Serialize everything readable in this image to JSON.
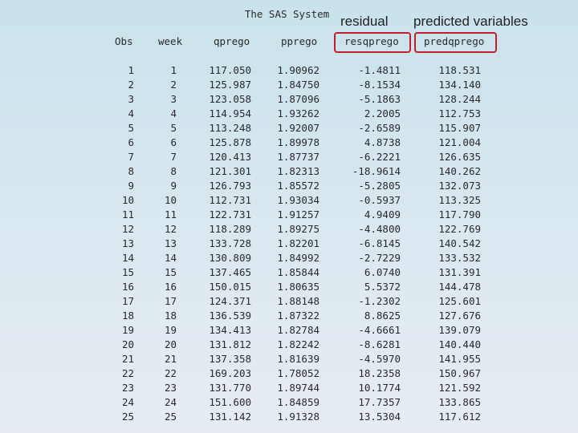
{
  "title": "The SAS System",
  "annotations": {
    "residual": "residual",
    "predicted": "predicted variables"
  },
  "columns": {
    "obs": "Obs",
    "week": "week",
    "qprego": "qprego",
    "pprego": "pprego",
    "resqprego": "resqprego",
    "predqprego": "predqprego"
  },
  "rows": [
    {
      "obs": "1",
      "week": "1",
      "qprego": "117.050",
      "pprego": "1.90962",
      "resqprego": "-1.4811",
      "predqprego": "118.531"
    },
    {
      "obs": "2",
      "week": "2",
      "qprego": "125.987",
      "pprego": "1.84750",
      "resqprego": "-8.1534",
      "predqprego": "134.140"
    },
    {
      "obs": "3",
      "week": "3",
      "qprego": "123.058",
      "pprego": "1.87096",
      "resqprego": "-5.1863",
      "predqprego": "128.244"
    },
    {
      "obs": "4",
      "week": "4",
      "qprego": "114.954",
      "pprego": "1.93262",
      "resqprego": "2.2005",
      "predqprego": "112.753"
    },
    {
      "obs": "5",
      "week": "5",
      "qprego": "113.248",
      "pprego": "1.92007",
      "resqprego": "-2.6589",
      "predqprego": "115.907"
    },
    {
      "obs": "6",
      "week": "6",
      "qprego": "125.878",
      "pprego": "1.89978",
      "resqprego": "4.8738",
      "predqprego": "121.004"
    },
    {
      "obs": "7",
      "week": "7",
      "qprego": "120.413",
      "pprego": "1.87737",
      "resqprego": "-6.2221",
      "predqprego": "126.635"
    },
    {
      "obs": "8",
      "week": "8",
      "qprego": "121.301",
      "pprego": "1.82313",
      "resqprego": "-18.9614",
      "predqprego": "140.262"
    },
    {
      "obs": "9",
      "week": "9",
      "qprego": "126.793",
      "pprego": "1.85572",
      "resqprego": "-5.2805",
      "predqprego": "132.073"
    },
    {
      "obs": "10",
      "week": "10",
      "qprego": "112.731",
      "pprego": "1.93034",
      "resqprego": "-0.5937",
      "predqprego": "113.325"
    },
    {
      "obs": "11",
      "week": "11",
      "qprego": "122.731",
      "pprego": "1.91257",
      "resqprego": "4.9409",
      "predqprego": "117.790"
    },
    {
      "obs": "12",
      "week": "12",
      "qprego": "118.289",
      "pprego": "1.89275",
      "resqprego": "-4.4800",
      "predqprego": "122.769"
    },
    {
      "obs": "13",
      "week": "13",
      "qprego": "133.728",
      "pprego": "1.82201",
      "resqprego": "-6.8145",
      "predqprego": "140.542"
    },
    {
      "obs": "14",
      "week": "14",
      "qprego": "130.809",
      "pprego": "1.84992",
      "resqprego": "-2.7229",
      "predqprego": "133.532"
    },
    {
      "obs": "15",
      "week": "15",
      "qprego": "137.465",
      "pprego": "1.85844",
      "resqprego": "6.0740",
      "predqprego": "131.391"
    },
    {
      "obs": "16",
      "week": "16",
      "qprego": "150.015",
      "pprego": "1.80635",
      "resqprego": "5.5372",
      "predqprego": "144.478"
    },
    {
      "obs": "17",
      "week": "17",
      "qprego": "124.371",
      "pprego": "1.88148",
      "resqprego": "-1.2302",
      "predqprego": "125.601"
    },
    {
      "obs": "18",
      "week": "18",
      "qprego": "136.539",
      "pprego": "1.87322",
      "resqprego": "8.8625",
      "predqprego": "127.676"
    },
    {
      "obs": "19",
      "week": "19",
      "qprego": "134.413",
      "pprego": "1.82784",
      "resqprego": "-4.6661",
      "predqprego": "139.079"
    },
    {
      "obs": "20",
      "week": "20",
      "qprego": "131.812",
      "pprego": "1.82242",
      "resqprego": "-8.6281",
      "predqprego": "140.440"
    },
    {
      "obs": "21",
      "week": "21",
      "qprego": "137.358",
      "pprego": "1.81639",
      "resqprego": "-4.5970",
      "predqprego": "141.955"
    },
    {
      "obs": "22",
      "week": "22",
      "qprego": "169.203",
      "pprego": "1.78052",
      "resqprego": "18.2358",
      "predqprego": "150.967"
    },
    {
      "obs": "23",
      "week": "23",
      "qprego": "131.770",
      "pprego": "1.89744",
      "resqprego": "10.1774",
      "predqprego": "121.592"
    },
    {
      "obs": "24",
      "week": "24",
      "qprego": "151.600",
      "pprego": "1.84859",
      "resqprego": "17.7357",
      "predqprego": "133.865"
    },
    {
      "obs": "25",
      "week": "25",
      "qprego": "131.142",
      "pprego": "1.91328",
      "resqprego": "13.5304",
      "predqprego": "117.612"
    }
  ],
  "colors": {
    "highlight": "#c0202a",
    "background_top": "#c9e2ec",
    "background_bottom": "#e7ecf4"
  }
}
